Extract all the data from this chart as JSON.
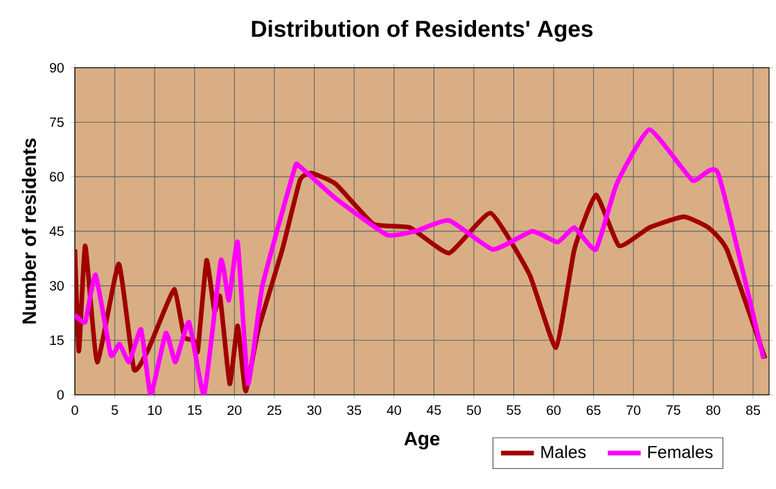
{
  "chart_data": {
    "type": "line",
    "title": "Distribution of Residents' Ages",
    "xlabel": "Age",
    "ylabel": "Number of residents",
    "xlim": [
      0,
      87
    ],
    "ylim": [
      0,
      90
    ],
    "xticks": [
      0,
      5,
      10,
      15,
      20,
      25,
      30,
      35,
      40,
      45,
      50,
      55,
      60,
      65,
      70,
      75,
      80,
      85
    ],
    "yticks": [
      0,
      15,
      30,
      45,
      60,
      75,
      90
    ],
    "grid": true,
    "legend": "bottom right",
    "series": [
      {
        "name": "Males",
        "color": "#a00000",
        "x": [
          0,
          0.5,
          1.3,
          2.8,
          5.5,
          7.4,
          9.1,
          10.8,
          12.5,
          13.7,
          14.9,
          15.4,
          16.5,
          17.5,
          18.2,
          19.4,
          20.4,
          21.4,
          23,
          26,
          28.2,
          29.6,
          32.7,
          37.4,
          42,
          46.9,
          52.1,
          57,
          60.3,
          62.6,
          65.3,
          68.2,
          72,
          76.3,
          79.4,
          81.7,
          86.5
        ],
        "values": [
          40,
          12,
          41,
          9,
          36,
          7,
          12,
          21,
          29,
          16,
          15,
          12,
          37,
          23,
          27,
          3,
          19,
          1,
          18,
          40,
          59,
          61,
          58,
          47,
          46,
          39,
          50,
          33,
          13,
          40,
          55,
          41,
          46,
          49,
          46,
          40,
          10
        ]
      },
      {
        "name": "Females",
        "color": "#ff00ff",
        "x": [
          0,
          1.3,
          2.6,
          4.5,
          5.6,
          6.8,
          8.3,
          9.5,
          11.4,
          12.6,
          14.3,
          16.2,
          18.3,
          19.3,
          20.4,
          21.7,
          23.5,
          27.5,
          28.1,
          32.7,
          39.1,
          42.6,
          46.9,
          52.4,
          57.3,
          60.5,
          62.6,
          65.3,
          67.9,
          72,
          77.4,
          80.6,
          86.3
        ],
        "values": [
          22,
          20,
          33,
          11,
          14,
          9,
          18,
          0,
          17,
          9,
          20,
          0,
          37,
          26,
          42,
          3,
          30,
          62,
          63,
          54,
          44,
          45,
          48,
          40,
          45,
          42,
          46,
          40,
          58,
          73,
          59,
          61,
          10
        ]
      }
    ]
  }
}
